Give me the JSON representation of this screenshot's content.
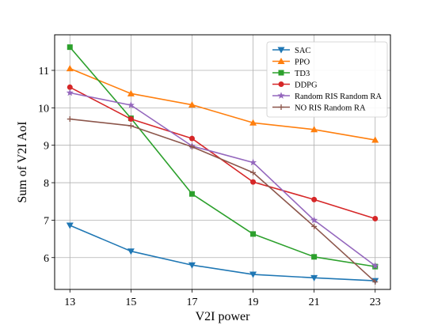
{
  "chart_data": {
    "type": "line",
    "title": "",
    "xlabel": "V2I power",
    "ylabel": "Sum of V2I AoI",
    "x": [
      13,
      15,
      17,
      19,
      21,
      23
    ],
    "xticks": [
      "13",
      "15",
      "17",
      "19",
      "21",
      "23"
    ],
    "xlim": [
      12.5,
      23.5
    ],
    "yticks": [
      "6",
      "7",
      "8",
      "9",
      "10",
      "11"
    ],
    "ylim": [
      5.15,
      11.95
    ],
    "grid": true,
    "legend_position": "top-right",
    "series": [
      {
        "name": "SAC",
        "color": "#1f77b4",
        "marker": "triangle-down",
        "values": [
          6.86,
          6.17,
          5.8,
          5.55,
          5.46,
          5.38
        ]
      },
      {
        "name": "PPO",
        "color": "#ff7f0e",
        "marker": "triangle-up",
        "values": [
          11.05,
          10.38,
          10.08,
          9.6,
          9.42,
          9.14
        ]
      },
      {
        "name": "TD3",
        "color": "#2ca02c",
        "marker": "square",
        "values": [
          11.62,
          9.72,
          7.7,
          6.63,
          6.02,
          5.76
        ]
      },
      {
        "name": "DDPG",
        "color": "#d62728",
        "marker": "circle",
        "values": [
          10.55,
          9.7,
          9.18,
          8.02,
          7.55,
          7.04
        ]
      },
      {
        "name": "Random RIS Random RA",
        "color": "#9467bd",
        "marker": "star",
        "values": [
          10.4,
          10.07,
          8.98,
          8.54,
          7.0,
          5.78
        ]
      },
      {
        "name": "NO RIS Random RA",
        "color": "#8c564b",
        "marker": "plus",
        "values": [
          9.7,
          9.52,
          8.96,
          8.27,
          6.83,
          5.35
        ]
      }
    ]
  }
}
